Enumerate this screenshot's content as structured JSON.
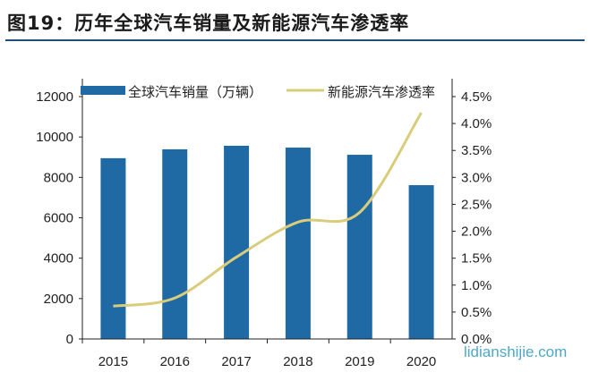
{
  "title": "图19：历年全球汽车销量及新能源汽车渗透率",
  "watermark": "lidianshijie.com",
  "chart_data": {
    "type": "bar",
    "categories": [
      "2015",
      "2016",
      "2017",
      "2018",
      "2019",
      "2020"
    ],
    "series": [
      {
        "name": "全球汽车销量（万辆）",
        "type": "bar",
        "axis": "left",
        "color": "#1f6aa5",
        "values": [
          8950,
          9390,
          9565,
          9475,
          9120,
          7615
        ]
      },
      {
        "name": "新能源汽车渗透率",
        "type": "line",
        "axis": "right",
        "color": "#d9cc7a",
        "values": [
          0.61,
          0.76,
          1.52,
          2.17,
          2.35,
          4.2
        ]
      }
    ],
    "ylim": [
      0,
      12000
    ],
    "yticks": [
      "0",
      "2000",
      "4000",
      "6000",
      "8000",
      "10000",
      "12000"
    ],
    "y2lim": [
      0,
      4.5
    ],
    "y2ticks": [
      "0.0%",
      "0.5%",
      "1.0%",
      "1.5%",
      "2.0%",
      "2.5%",
      "3.0%",
      "3.5%",
      "4.0%",
      "4.5%"
    ],
    "grid": false,
    "legend": "top"
  }
}
